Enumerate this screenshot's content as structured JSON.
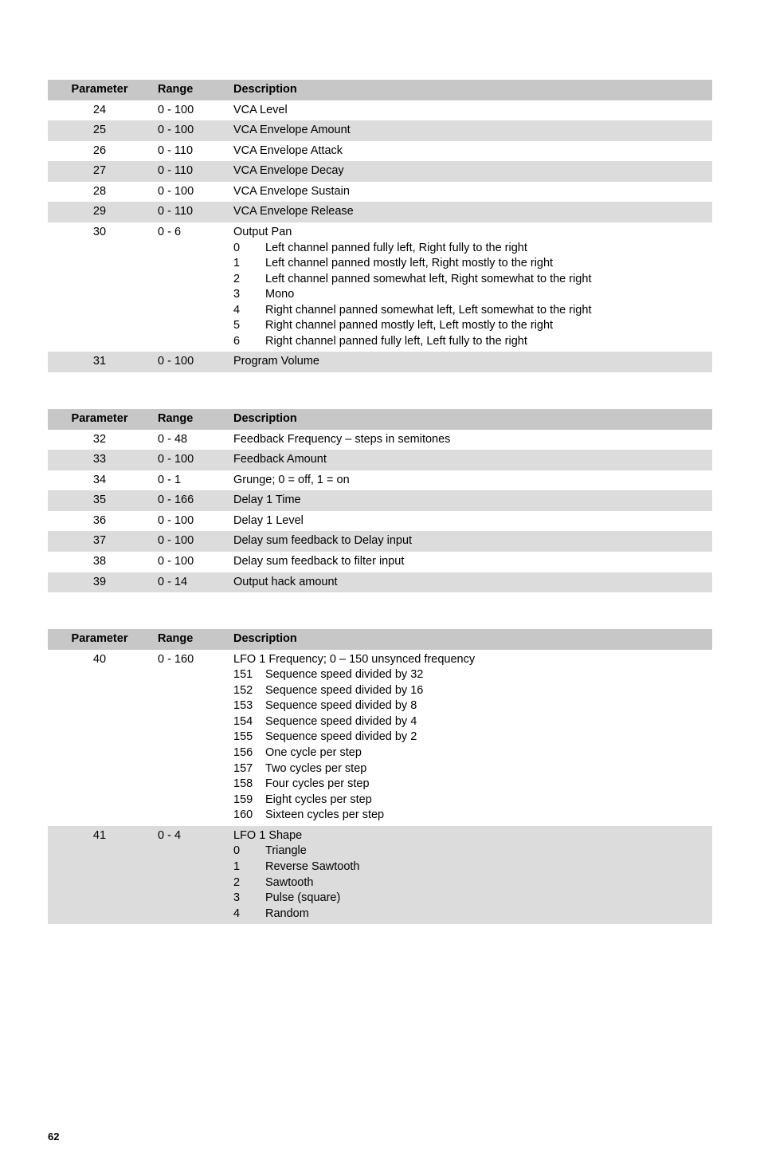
{
  "page_number": "62",
  "tables": [
    {
      "headers": {
        "parameter": "Parameter",
        "range": "Range",
        "description": "Description"
      },
      "rows": [
        {
          "parameter": "24",
          "range": "0 - 100",
          "description": "VCA Level",
          "shade": "odd"
        },
        {
          "parameter": "25",
          "range": "0 - 100",
          "description": "VCA Envelope Amount",
          "shade": "even"
        },
        {
          "parameter": "26",
          "range": "0 - 110",
          "description": "VCA Envelope Attack",
          "shade": "odd"
        },
        {
          "parameter": "27",
          "range": "0 - 110",
          "description": "VCA Envelope Decay",
          "shade": "even"
        },
        {
          "parameter": "28",
          "range": "0 - 100",
          "description": "VCA Envelope Sustain",
          "shade": "odd"
        },
        {
          "parameter": "29",
          "range": "0 - 110",
          "description": "VCA Envelope Release",
          "shade": "even"
        },
        {
          "parameter": "30",
          "range": "0 - 6",
          "shade": "odd",
          "multi": {
            "intro": "Output Pan",
            "options": [
              {
                "key": "0",
                "val": "Left channel panned fully left, Right fully to the right"
              },
              {
                "key": "1",
                "val": "Left channel panned mostly left, Right mostly to the right"
              },
              {
                "key": "2",
                "val": "Left channel panned somewhat left, Right somewhat to the right"
              },
              {
                "key": "3",
                "val": "Mono"
              },
              {
                "key": "4",
                "val": "Right channel panned somewhat left, Left somewhat to the right"
              },
              {
                "key": "5",
                "val": "Right channel panned mostly left, Left mostly to the right"
              },
              {
                "key": "6",
                "val": "Right channel panned fully left, Left fully to the right"
              }
            ]
          }
        },
        {
          "parameter": "31",
          "range": "0 - 100",
          "description": "Program Volume",
          "shade": "even"
        }
      ]
    },
    {
      "headers": {
        "parameter": "Parameter",
        "range": "Range",
        "description": "Description"
      },
      "rows": [
        {
          "parameter": "32",
          "range": "0 - 48",
          "description": "Feedback Frequency – steps in semitones",
          "shade": "odd"
        },
        {
          "parameter": "33",
          "range": "0 - 100",
          "description": "Feedback Amount",
          "shade": "even"
        },
        {
          "parameter": "34",
          "range": "0 - 1",
          "description": "Grunge; 0 = off, 1 = on",
          "shade": "odd"
        },
        {
          "parameter": "35",
          "range": "0 - 166",
          "description": "Delay 1 Time",
          "shade": "even"
        },
        {
          "parameter": "36",
          "range": "0 - 100",
          "description": "Delay 1 Level",
          "shade": "odd"
        },
        {
          "parameter": "37",
          "range": "0 - 100",
          "description": "Delay sum feedback to Delay input",
          "shade": "even"
        },
        {
          "parameter": "38",
          "range": "0 - 100",
          "description": "Delay sum feedback to filter input",
          "shade": "odd"
        },
        {
          "parameter": "39",
          "range": "0 - 14",
          "description": "Output hack amount",
          "shade": "even"
        }
      ]
    },
    {
      "headers": {
        "parameter": "Parameter",
        "range": "Range",
        "description": "Description"
      },
      "rows": [
        {
          "parameter": "40",
          "range": "0 - 160",
          "shade": "odd",
          "multi": {
            "intro": "LFO 1 Frequency; 0 – 150 unsynced frequency",
            "options": [
              {
                "key": "151",
                "val": "Sequence speed divided by 32"
              },
              {
                "key": "152",
                "val": "Sequence speed divided by 16"
              },
              {
                "key": "153",
                "val": "Sequence speed divided by 8"
              },
              {
                "key": "154",
                "val": "Sequence speed divided by 4"
              },
              {
                "key": "155",
                "val": "Sequence speed divided by 2"
              },
              {
                "key": "156",
                "val": "One cycle per step"
              },
              {
                "key": "157",
                "val": "Two cycles per step"
              },
              {
                "key": "158",
                "val": "Four cycles per step"
              },
              {
                "key": "159",
                "val": "Eight cycles per step"
              },
              {
                "key": "160",
                "val": "Sixteen cycles per step"
              }
            ]
          }
        },
        {
          "parameter": "41",
          "range": "0 - 4",
          "shade": "even",
          "multi": {
            "intro": "LFO 1 Shape",
            "options": [
              {
                "key": "0",
                "val": "Triangle"
              },
              {
                "key": "1",
                "val": "Reverse Sawtooth"
              },
              {
                "key": "2",
                "val": "Sawtooth"
              },
              {
                "key": "3",
                "val": "Pulse (square)"
              },
              {
                "key": "4",
                "val": "Random"
              }
            ]
          }
        }
      ]
    }
  ]
}
